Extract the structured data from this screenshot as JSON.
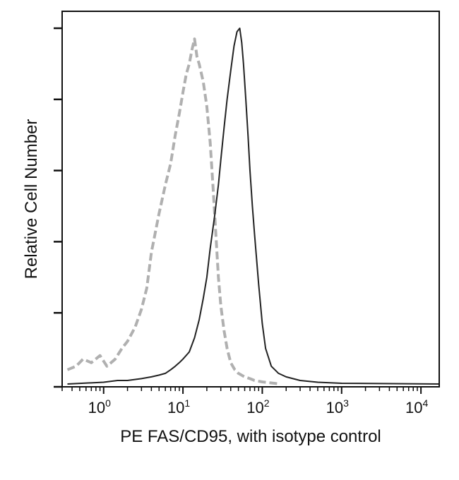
{
  "chart_data": {
    "type": "line",
    "title": "",
    "xlabel": "PE FAS/CD95, with isotype control",
    "ylabel": "Relative Cell Number",
    "x_scale": "log",
    "xlim": [
      0.3,
      17000
    ],
    "ylim": [
      0,
      100
    ],
    "x_ticks": [
      {
        "value": 1,
        "base": "10",
        "exp": "0"
      },
      {
        "value": 10,
        "base": "10",
        "exp": "1"
      },
      {
        "value": 100,
        "base": "10",
        "exp": "2"
      },
      {
        "value": 1000,
        "base": "10",
        "exp": "3"
      },
      {
        "value": 10000,
        "base": "10",
        "exp": "4"
      }
    ],
    "y_ticks": [
      0,
      20,
      40,
      60,
      80,
      100
    ],
    "grid": false,
    "legend": "none",
    "series": [
      {
        "style": "dashed",
        "color": "#b0b0b0",
        "x": [
          0.35,
          0.45,
          0.55,
          0.7,
          0.9,
          1.1,
          1.4,
          1.7,
          2.0,
          2.5,
          3.0,
          3.5,
          4.0,
          5.0,
          6.0,
          7.0,
          8.0,
          9.0,
          10.0,
          11.0,
          12.0,
          13.0,
          14.0,
          15.0,
          16.0,
          18.0,
          20.0,
          22.0,
          24.0,
          26.0,
          28.0,
          30.0,
          33.0,
          36.0,
          40.0,
          45.0,
          50.0,
          60.0,
          70.0,
          80.0,
          100.0,
          130.0,
          170.0
        ],
        "y": [
          4,
          5,
          7,
          6,
          8,
          5,
          7,
          10,
          12,
          16,
          21,
          27,
          37,
          48,
          56,
          62,
          70,
          76,
          82,
          87,
          90,
          94,
          97,
          92,
          90,
          85,
          78,
          68,
          55,
          42,
          30,
          22,
          15,
          10,
          6,
          4,
          3,
          2,
          1.5,
          1,
          0.6,
          0.3,
          0
        ]
      },
      {
        "style": "solid",
        "color": "#222222",
        "x": [
          0.35,
          1.0,
          1.5,
          2.0,
          3.0,
          4.0,
          5.0,
          6.0,
          7.0,
          8.0,
          9.0,
          10.0,
          12.0,
          14.0,
          16.0,
          18.0,
          20.0,
          22.0,
          25.0,
          28.0,
          30.0,
          33.0,
          36.0,
          40.0,
          44.0,
          48.0,
          52.0,
          55.0,
          58.0,
          62.0,
          66.0,
          70.0,
          75.0,
          80.0,
          90.0,
          100.0,
          110.0,
          130.0,
          160.0,
          200.0,
          300.0,
          500.0,
          1000.0,
          17000.0
        ],
        "y": [
          0,
          0.5,
          1,
          1,
          1.5,
          2,
          2.5,
          3,
          4,
          5,
          6,
          7,
          9,
          13,
          18,
          24,
          30,
          38,
          47,
          56,
          63,
          72,
          80,
          88,
          95,
          99,
          100,
          96,
          90,
          80,
          70,
          60,
          50,
          42,
          28,
          17,
          10,
          5,
          3,
          2,
          1,
          0.5,
          0.2,
          0
        ]
      }
    ]
  }
}
